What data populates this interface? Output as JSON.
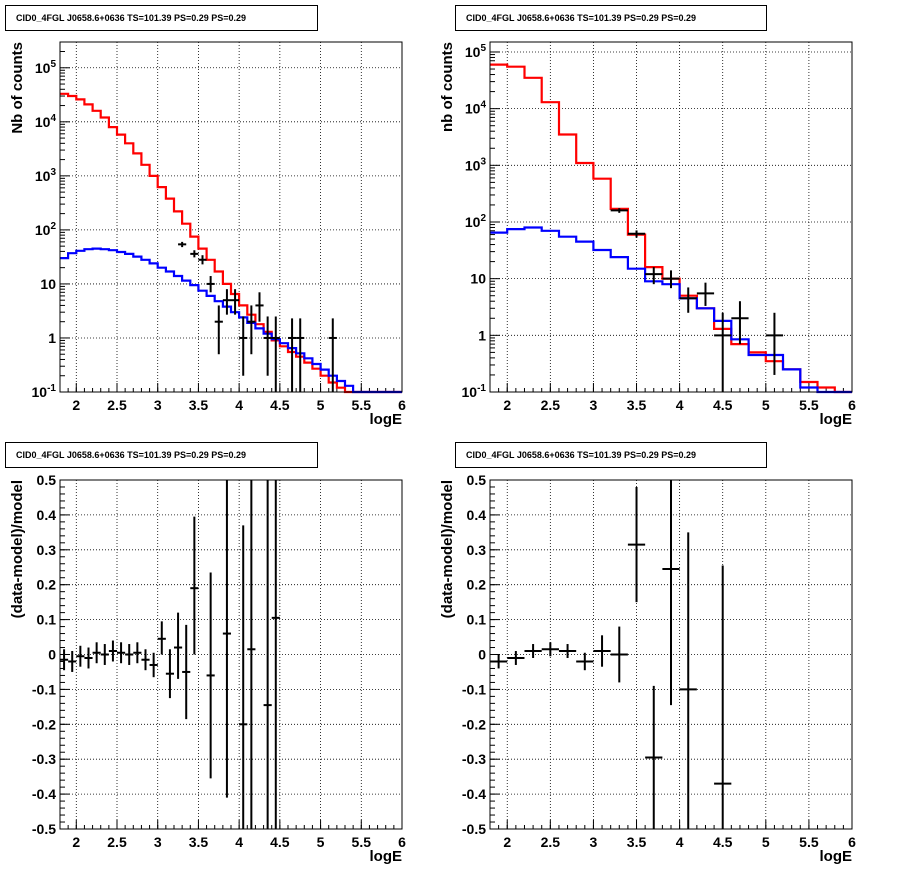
{
  "chart_data": [
    {
      "type": "step-histogram",
      "title": "CID0_4FGL J0658.6+0636 TS=101.39 PS=0.29 PS=0.29",
      "xlabel": "logE",
      "ylabel": "Nb of counts",
      "xlim": [
        1.8,
        6.0
      ],
      "ylim": [
        0.1,
        300000
      ],
      "yscale": "log",
      "grid": true,
      "xticks": [
        "2",
        "2.5",
        "3",
        "3.5",
        "4",
        "4.5",
        "5",
        "5.5",
        "6"
      ],
      "yticks": [
        {
          "v": 0.1,
          "m": "10",
          "e": "-1"
        },
        {
          "v": 1,
          "m": "1",
          "e": ""
        },
        {
          "v": 10,
          "m": "10",
          "e": ""
        },
        {
          "v": 100,
          "m": "10",
          "e": "2"
        },
        {
          "v": 1000,
          "m": "10",
          "e": "3"
        },
        {
          "v": 10000,
          "m": "10",
          "e": "4"
        },
        {
          "v": 100000,
          "m": "10",
          "e": "5"
        }
      ],
      "bin_edges": [
        1.8,
        1.9,
        2.0,
        2.1,
        2.2,
        2.3,
        2.4,
        2.5,
        2.6,
        2.7,
        2.8,
        2.9,
        3.0,
        3.1,
        3.2,
        3.3,
        3.4,
        3.5,
        3.6,
        3.7,
        3.8,
        3.9,
        4.0,
        4.1,
        4.2,
        4.3,
        4.4,
        4.5,
        4.6,
        4.7,
        4.8,
        4.9,
        5.0,
        5.1,
        5.2,
        5.3,
        5.4,
        5.5,
        5.6,
        5.7,
        5.8,
        5.9,
        6.0
      ],
      "series": [
        {
          "color": "#ff0000",
          "values": [
            33000,
            30000,
            26000,
            21000,
            16000,
            12000,
            8000,
            5800,
            4000,
            2600,
            1600,
            1000,
            620,
            380,
            220,
            130,
            75,
            45,
            28,
            17,
            10,
            6.5,
            4,
            2.7,
            1.8,
            1.3,
            0.9,
            0.7,
            0.55,
            0.45,
            0.35,
            0.27,
            0.2,
            0.15,
            0.12,
            0.1,
            0.1,
            0.1,
            0.1,
            0.1,
            0.1,
            0.1
          ]
        },
        {
          "color": "#0000ff",
          "values": [
            30,
            37,
            41,
            44,
            45,
            44,
            42,
            39,
            36,
            32,
            28,
            24,
            20,
            17,
            14,
            11.5,
            9.5,
            7.5,
            6,
            4.8,
            3.8,
            3,
            2.4,
            1.9,
            1.5,
            1.2,
            0.95,
            0.8,
            0.65,
            0.52,
            0.42,
            0.33,
            0.26,
            0.2,
            0.16,
            0.13,
            0.1,
            0.1,
            0.1,
            0.1,
            0.1,
            0.1
          ]
        }
      ],
      "data_points": [
        {
          "x": 3.3,
          "y": 54,
          "dx": 0.05,
          "lo": 48,
          "hi": 60
        },
        {
          "x": 3.45,
          "y": 36,
          "dx": 0.05,
          "lo": 31,
          "hi": 42
        },
        {
          "x": 3.55,
          "y": 28,
          "dx": 0.05,
          "lo": 23,
          "hi": 34
        },
        {
          "x": 3.65,
          "y": 10,
          "dx": 0.05,
          "lo": 7,
          "hi": 14
        },
        {
          "x": 3.75,
          "y": 2,
          "dx": 0.05,
          "lo": 0.5,
          "hi": 4
        },
        {
          "x": 3.85,
          "y": 5,
          "dx": 0.05,
          "lo": 2.7,
          "hi": 8
        },
        {
          "x": 3.95,
          "y": 5,
          "dx": 0.05,
          "lo": 2.7,
          "hi": 8
        },
        {
          "x": 4.05,
          "y": 1,
          "dx": 0.05,
          "lo": 0.2,
          "hi": 2.5
        },
        {
          "x": 4.15,
          "y": 2,
          "dx": 0.05,
          "lo": 0.5,
          "hi": 4
        },
        {
          "x": 4.25,
          "y": 4,
          "dx": 0.05,
          "lo": 2,
          "hi": 7
        },
        {
          "x": 4.35,
          "y": 1,
          "dx": 0.05,
          "lo": 0.2,
          "hi": 2.5
        },
        {
          "x": 4.45,
          "y": 1,
          "dx": 0.05,
          "lo": 0.1,
          "hi": 2.5
        },
        {
          "x": 4.65,
          "y": 1,
          "dx": 0.05,
          "lo": 0.1,
          "hi": 2.3
        },
        {
          "x": 4.75,
          "y": 1,
          "dx": 0.05,
          "lo": 0.1,
          "hi": 2.3
        },
        {
          "x": 5.15,
          "y": 1,
          "dx": 0.05,
          "lo": 0.1,
          "hi": 2.3
        }
      ]
    },
    {
      "type": "step-histogram",
      "title": "CID0_4FGL J0658.6+0636 TS=101.39 PS=0.29 PS=0.29",
      "xlabel": "logE",
      "ylabel": "nb of counts",
      "xlim": [
        1.8,
        6.0
      ],
      "ylim": [
        0.1,
        150000
      ],
      "yscale": "log",
      "grid": true,
      "xticks": [
        "2",
        "2.5",
        "3",
        "3.5",
        "4",
        "4.5",
        "5",
        "5.5",
        "6"
      ],
      "yticks": [
        {
          "v": 0.1,
          "m": "10",
          "e": "-1"
        },
        {
          "v": 1,
          "m": "1",
          "e": ""
        },
        {
          "v": 10,
          "m": "10",
          "e": ""
        },
        {
          "v": 100,
          "m": "10",
          "e": "2"
        },
        {
          "v": 1000,
          "m": "10",
          "e": "3"
        },
        {
          "v": 10000,
          "m": "10",
          "e": "4"
        },
        {
          "v": 100000,
          "m": "10",
          "e": "5"
        }
      ],
      "bin_edges": [
        1.8,
        2.0,
        2.2,
        2.4,
        2.6,
        2.8,
        3.0,
        3.2,
        3.4,
        3.6,
        3.8,
        4.0,
        4.2,
        4.4,
        4.6,
        4.8,
        5.0,
        5.2,
        5.4,
        5.6,
        5.8,
        6.0
      ],
      "series": [
        {
          "color": "#ff0000",
          "values": [
            60000,
            55000,
            35000,
            13000,
            3500,
            1100,
            580,
            170,
            60,
            16,
            10,
            5,
            3,
            1.3,
            0.7,
            0.5,
            0.35,
            0.25,
            0.15,
            0.12,
            0.1
          ]
        },
        {
          "color": "#0000ff",
          "values": [
            65,
            75,
            80,
            70,
            55,
            45,
            32,
            24,
            15,
            9,
            8,
            4.5,
            3,
            1.8,
            0.85,
            0.45,
            0.45,
            0.25,
            0.12,
            0.1,
            0.1
          ]
        }
      ],
      "data_points": [
        {
          "x": 3.3,
          "y": 160,
          "dx": 0.1,
          "lo": 145,
          "hi": 175
        },
        {
          "x": 3.5,
          "y": 62,
          "dx": 0.1,
          "lo": 53,
          "hi": 71
        },
        {
          "x": 3.7,
          "y": 12,
          "dx": 0.1,
          "lo": 8,
          "hi": 16
        },
        {
          "x": 3.9,
          "y": 10,
          "dx": 0.1,
          "lo": 6.8,
          "hi": 14
        },
        {
          "x": 4.1,
          "y": 4.5,
          "dx": 0.1,
          "lo": 2.5,
          "hi": 7
        },
        {
          "x": 4.3,
          "y": 5.5,
          "dx": 0.1,
          "lo": 3.3,
          "hi": 8.5
        },
        {
          "x": 4.5,
          "y": 1,
          "dx": 0.1,
          "lo": 0.1,
          "hi": 2.5
        },
        {
          "x": 4.7,
          "y": 2,
          "dx": 0.1,
          "lo": 0.7,
          "hi": 4
        },
        {
          "x": 5.1,
          "y": 1,
          "dx": 0.1,
          "lo": 0.2,
          "hi": 2.5
        }
      ]
    },
    {
      "type": "scatter-errorbars",
      "title": "CID0_4FGL J0658.6+0636 TS=101.39 PS=0.29 PS=0.29",
      "xlabel": "logE",
      "ylabel": "(data-model)/model",
      "xlim": [
        1.8,
        6.0
      ],
      "ylim": [
        -0.5,
        0.5
      ],
      "grid": true,
      "xticks": [
        "2",
        "2.5",
        "3",
        "3.5",
        "4",
        "4.5",
        "5",
        "5.5",
        "6"
      ],
      "yticks": [
        "-0.5",
        "-0.4",
        "-0.3",
        "-0.2",
        "-0.1",
        "0",
        "0.1",
        "0.2",
        "0.3",
        "0.4",
        "0.5"
      ],
      "data_points": [
        {
          "x": 1.85,
          "y": -0.015,
          "dx": 0.05,
          "lo": -0.045,
          "hi": 0.015
        },
        {
          "x": 1.95,
          "y": -0.02,
          "dx": 0.05,
          "lo": -0.05,
          "hi": 0.01
        },
        {
          "x": 2.05,
          "y": -0.005,
          "dx": 0.05,
          "lo": -0.035,
          "hi": 0.025
        },
        {
          "x": 2.15,
          "y": -0.01,
          "dx": 0.05,
          "lo": -0.04,
          "hi": 0.02
        },
        {
          "x": 2.25,
          "y": 0.005,
          "dx": 0.05,
          "lo": -0.025,
          "hi": 0.035
        },
        {
          "x": 2.35,
          "y": 0.0,
          "dx": 0.05,
          "lo": -0.03,
          "hi": 0.03
        },
        {
          "x": 2.45,
          "y": 0.01,
          "dx": 0.05,
          "lo": -0.02,
          "hi": 0.04
        },
        {
          "x": 2.55,
          "y": 0.005,
          "dx": 0.05,
          "lo": -0.025,
          "hi": 0.035
        },
        {
          "x": 2.65,
          "y": 0.0,
          "dx": 0.05,
          "lo": -0.03,
          "hi": 0.03
        },
        {
          "x": 2.75,
          "y": 0.005,
          "dx": 0.05,
          "lo": -0.025,
          "hi": 0.035
        },
        {
          "x": 2.85,
          "y": -0.015,
          "dx": 0.05,
          "lo": -0.045,
          "hi": 0.015
        },
        {
          "x": 2.95,
          "y": -0.03,
          "dx": 0.05,
          "lo": -0.065,
          "hi": 0.005
        },
        {
          "x": 3.05,
          "y": 0.045,
          "dx": 0.05,
          "lo": 0.0,
          "hi": 0.095
        },
        {
          "x": 3.15,
          "y": -0.055,
          "dx": 0.05,
          "lo": -0.125,
          "hi": 0.015
        },
        {
          "x": 3.25,
          "y": 0.02,
          "dx": 0.05,
          "lo": -0.07,
          "hi": 0.12
        },
        {
          "x": 3.35,
          "y": -0.05,
          "dx": 0.05,
          "lo": -0.185,
          "hi": 0.085
        },
        {
          "x": 3.45,
          "y": 0.19,
          "dx": 0.05,
          "lo": 0.0,
          "hi": 0.395
        },
        {
          "x": 3.65,
          "y": -0.06,
          "dx": 0.05,
          "lo": -0.355,
          "hi": 0.235
        },
        {
          "x": 3.85,
          "y": 0.06,
          "dx": 0.05,
          "lo": -0.41,
          "hi": 0.5
        },
        {
          "x": 4.05,
          "y": -0.2,
          "dx": 0.05,
          "lo": -0.5,
          "hi": 0.37
        },
        {
          "x": 4.15,
          "y": 0.015,
          "dx": 0.05,
          "lo": -0.5,
          "hi": 0.5
        },
        {
          "x": 4.35,
          "y": -0.145,
          "dx": 0.05,
          "lo": -0.5,
          "hi": 0.5
        },
        {
          "x": 4.45,
          "y": 0.105,
          "dx": 0.05,
          "lo": -0.5,
          "hi": 0.5
        }
      ]
    },
    {
      "type": "scatter-errorbars",
      "title": "CID0_4FGL J0658.6+0636 TS=101.39 PS=0.29 PS=0.29",
      "xlabel": "logE",
      "ylabel": "(data-model)/model",
      "xlim": [
        1.8,
        6.0
      ],
      "ylim": [
        -0.5,
        0.5
      ],
      "grid": true,
      "xticks": [
        "2",
        "2.5",
        "3",
        "3.5",
        "4",
        "4.5",
        "5",
        "5.5",
        "6"
      ],
      "yticks": [
        "-0.5",
        "-0.4",
        "-0.3",
        "-0.2",
        "-0.1",
        "0",
        "0.1",
        "0.2",
        "0.3",
        "0.4",
        "0.5"
      ],
      "data_points": [
        {
          "x": 1.9,
          "y": -0.02,
          "dx": 0.1,
          "lo": -0.04,
          "hi": 0.0
        },
        {
          "x": 2.1,
          "y": -0.01,
          "dx": 0.1,
          "lo": -0.03,
          "hi": 0.01
        },
        {
          "x": 2.3,
          "y": 0.01,
          "dx": 0.1,
          "lo": -0.01,
          "hi": 0.03
        },
        {
          "x": 2.5,
          "y": 0.015,
          "dx": 0.1,
          "lo": -0.005,
          "hi": 0.035
        },
        {
          "x": 2.7,
          "y": 0.01,
          "dx": 0.1,
          "lo": -0.01,
          "hi": 0.03
        },
        {
          "x": 2.9,
          "y": -0.02,
          "dx": 0.1,
          "lo": -0.045,
          "hi": 0.005
        },
        {
          "x": 3.1,
          "y": 0.01,
          "dx": 0.1,
          "lo": -0.035,
          "hi": 0.055
        },
        {
          "x": 3.3,
          "y": 0.0,
          "dx": 0.1,
          "lo": -0.08,
          "hi": 0.08
        },
        {
          "x": 3.5,
          "y": 0.315,
          "dx": 0.1,
          "lo": 0.15,
          "hi": 0.48
        },
        {
          "x": 3.7,
          "y": -0.295,
          "dx": 0.1,
          "lo": -0.5,
          "hi": -0.09
        },
        {
          "x": 3.9,
          "y": 0.245,
          "dx": 0.1,
          "lo": -0.145,
          "hi": 0.5
        },
        {
          "x": 4.1,
          "y": -0.1,
          "dx": 0.1,
          "lo": -0.5,
          "hi": 0.35
        },
        {
          "x": 4.5,
          "y": -0.37,
          "dx": 0.1,
          "lo": -0.5,
          "hi": 0.255
        }
      ]
    }
  ]
}
